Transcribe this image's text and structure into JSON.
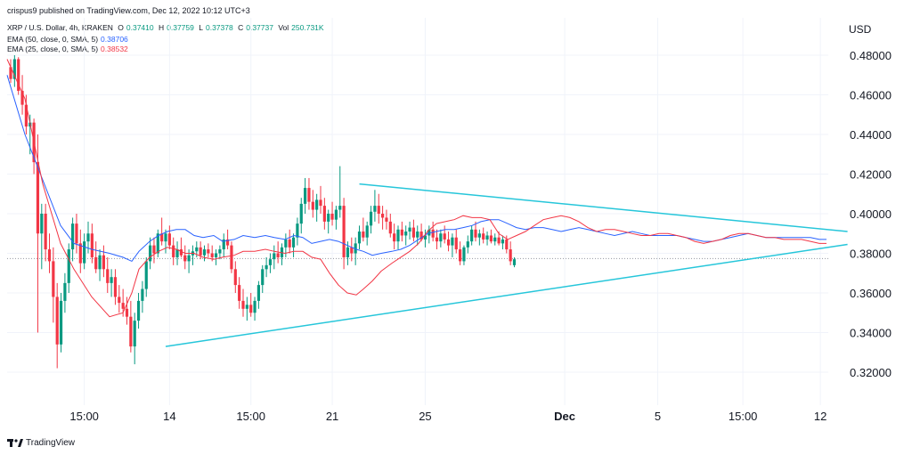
{
  "header": {
    "published": "crispus9 published on TradingView.com, Dec 12, 2022 10:12 UTC+3",
    "symbol": "XRP / U.S. Dollar, 4h, KRAKEN",
    "o_label": "O",
    "o": "0.37410",
    "h_label": "H",
    "h": "0.37759",
    "l_label": "L",
    "l": "0.37378",
    "c_label": "C",
    "c": "0.37737",
    "vol_label": "Vol",
    "vol": "250.731K",
    "ema50_label": "EMA (50, close, 0, SMA, 5)",
    "ema50_value": "0.38706",
    "ema25_label": "EMA (25, close, 0, SMA, 5)",
    "ema25_value": "0.38532"
  },
  "currency": "USD",
  "footer": {
    "brand": "TradingView"
  },
  "colors": {
    "up": "#089981",
    "down": "#f23645",
    "ema50": "#2962ff",
    "ema25": "#f23645",
    "trendline": "#26c6da",
    "text": "#131722"
  },
  "chart_data": {
    "type": "candlestick",
    "timeframe": "4h",
    "ylim": [
      0.305,
      0.495
    ],
    "y_ticks": [
      "0.48000",
      "0.46000",
      "0.44000",
      "0.42000",
      "0.40000",
      "0.38000",
      "0.36000",
      "0.34000",
      "0.32000"
    ],
    "x_ticks": [
      {
        "label": "15:00",
        "bar": 19
      },
      {
        "label": "14",
        "bar": 41
      },
      {
        "label": "15:00",
        "bar": 62
      },
      {
        "label": "21",
        "bar": 83
      },
      {
        "label": "25",
        "bar": 107
      },
      {
        "label": "Dec",
        "bar": 143,
        "bold": true
      },
      {
        "label": "5",
        "bar": 167
      },
      {
        "label": "15:00",
        "bar": 189
      },
      {
        "label": "12",
        "bar": 209
      }
    ],
    "last_price": 0.37737,
    "ohlc": [
      [
        0.474,
        0.478,
        0.466,
        0.468
      ],
      [
        0.468,
        0.48,
        0.464,
        0.478
      ],
      [
        0.478,
        0.479,
        0.46,
        0.462
      ],
      [
        0.462,
        0.47,
        0.45,
        0.455
      ],
      [
        0.455,
        0.46,
        0.44,
        0.444
      ],
      [
        0.444,
        0.45,
        0.43,
        0.446
      ],
      [
        0.446,
        0.448,
        0.42,
        0.426
      ],
      [
        0.426,
        0.44,
        0.34,
        0.39
      ],
      [
        0.39,
        0.405,
        0.372,
        0.4
      ],
      [
        0.4,
        0.405,
        0.376,
        0.382
      ],
      [
        0.382,
        0.39,
        0.37,
        0.376
      ],
      [
        0.376,
        0.383,
        0.345,
        0.358
      ],
      [
        0.358,
        0.365,
        0.322,
        0.334
      ],
      [
        0.334,
        0.36,
        0.33,
        0.356
      ],
      [
        0.356,
        0.37,
        0.35,
        0.365
      ],
      [
        0.365,
        0.385,
        0.36,
        0.382
      ],
      [
        0.382,
        0.398,
        0.376,
        0.395
      ],
      [
        0.395,
        0.4,
        0.38,
        0.385
      ],
      [
        0.385,
        0.392,
        0.37,
        0.375
      ],
      [
        0.375,
        0.39,
        0.372,
        0.386
      ],
      [
        0.386,
        0.396,
        0.38,
        0.39
      ],
      [
        0.39,
        0.395,
        0.375,
        0.378
      ],
      [
        0.378,
        0.386,
        0.37,
        0.372
      ],
      [
        0.372,
        0.382,
        0.366,
        0.379
      ],
      [
        0.379,
        0.384,
        0.368,
        0.372
      ],
      [
        0.372,
        0.378,
        0.36,
        0.365
      ],
      [
        0.365,
        0.372,
        0.358,
        0.368
      ],
      [
        0.368,
        0.372,
        0.354,
        0.358
      ],
      [
        0.358,
        0.364,
        0.35,
        0.355
      ],
      [
        0.355,
        0.362,
        0.348,
        0.352
      ],
      [
        0.352,
        0.358,
        0.344,
        0.348
      ],
      [
        0.348,
        0.356,
        0.33,
        0.333
      ],
      [
        0.333,
        0.35,
        0.324,
        0.346
      ],
      [
        0.346,
        0.36,
        0.342,
        0.356
      ],
      [
        0.356,
        0.366,
        0.35,
        0.362
      ],
      [
        0.362,
        0.378,
        0.358,
        0.376
      ],
      [
        0.376,
        0.388,
        0.372,
        0.384
      ],
      [
        0.384,
        0.388,
        0.375,
        0.38
      ],
      [
        0.38,
        0.392,
        0.378,
        0.39
      ],
      [
        0.39,
        0.398,
        0.384,
        0.386
      ],
      [
        0.386,
        0.392,
        0.38,
        0.39
      ],
      [
        0.39,
        0.394,
        0.382,
        0.384
      ],
      [
        0.384,
        0.388,
        0.374,
        0.378
      ],
      [
        0.378,
        0.386,
        0.374,
        0.382
      ],
      [
        0.382,
        0.388,
        0.378,
        0.379
      ],
      [
        0.379,
        0.384,
        0.372,
        0.376
      ],
      [
        0.376,
        0.382,
        0.37,
        0.379
      ],
      [
        0.379,
        0.384,
        0.374,
        0.381
      ],
      [
        0.381,
        0.386,
        0.378,
        0.383
      ],
      [
        0.383,
        0.386,
        0.377,
        0.379
      ],
      [
        0.379,
        0.384,
        0.376,
        0.382
      ],
      [
        0.382,
        0.385,
        0.378,
        0.38
      ],
      [
        0.38,
        0.384,
        0.376,
        0.378
      ],
      [
        0.378,
        0.382,
        0.374,
        0.38
      ],
      [
        0.38,
        0.384,
        0.377,
        0.382
      ],
      [
        0.382,
        0.39,
        0.378,
        0.387
      ],
      [
        0.387,
        0.392,
        0.382,
        0.384
      ],
      [
        0.384,
        0.386,
        0.37,
        0.372
      ],
      [
        0.372,
        0.376,
        0.36,
        0.364
      ],
      [
        0.364,
        0.368,
        0.352,
        0.356
      ],
      [
        0.356,
        0.362,
        0.348,
        0.352
      ],
      [
        0.352,
        0.358,
        0.346,
        0.354
      ],
      [
        0.354,
        0.36,
        0.348,
        0.35
      ],
      [
        0.35,
        0.358,
        0.346,
        0.356
      ],
      [
        0.356,
        0.366,
        0.352,
        0.364
      ],
      [
        0.364,
        0.374,
        0.36,
        0.372
      ],
      [
        0.372,
        0.378,
        0.368,
        0.374
      ],
      [
        0.374,
        0.38,
        0.37,
        0.377
      ],
      [
        0.377,
        0.384,
        0.372,
        0.38
      ],
      [
        0.38,
        0.386,
        0.375,
        0.378
      ],
      [
        0.378,
        0.385,
        0.374,
        0.383
      ],
      [
        0.383,
        0.39,
        0.378,
        0.387
      ],
      [
        0.387,
        0.392,
        0.38,
        0.383
      ],
      [
        0.383,
        0.39,
        0.378,
        0.388
      ],
      [
        0.388,
        0.398,
        0.384,
        0.395
      ],
      [
        0.395,
        0.408,
        0.39,
        0.405
      ],
      [
        0.405,
        0.418,
        0.4,
        0.413
      ],
      [
        0.413,
        0.418,
        0.402,
        0.406
      ],
      [
        0.406,
        0.412,
        0.398,
        0.402
      ],
      [
        0.402,
        0.41,
        0.396,
        0.407
      ],
      [
        0.407,
        0.414,
        0.4,
        0.404
      ],
      [
        0.404,
        0.408,
        0.392,
        0.396
      ],
      [
        0.396,
        0.402,
        0.39,
        0.4
      ],
      [
        0.4,
        0.406,
        0.394,
        0.397
      ],
      [
        0.397,
        0.404,
        0.392,
        0.402
      ],
      [
        0.402,
        0.424,
        0.398,
        0.404
      ],
      [
        0.404,
        0.408,
        0.372,
        0.378
      ],
      [
        0.378,
        0.386,
        0.374,
        0.383
      ],
      [
        0.383,
        0.388,
        0.376,
        0.38
      ],
      [
        0.38,
        0.388,
        0.374,
        0.385
      ],
      [
        0.385,
        0.394,
        0.382,
        0.391
      ],
      [
        0.391,
        0.398,
        0.386,
        0.388
      ],
      [
        0.388,
        0.396,
        0.384,
        0.394
      ],
      [
        0.394,
        0.404,
        0.39,
        0.401
      ],
      [
        0.401,
        0.412,
        0.396,
        0.404
      ],
      [
        0.404,
        0.41,
        0.395,
        0.4
      ],
      [
        0.4,
        0.404,
        0.392,
        0.398
      ],
      [
        0.398,
        0.402,
        0.392,
        0.396
      ],
      [
        0.396,
        0.4,
        0.388,
        0.39
      ],
      [
        0.39,
        0.395,
        0.382,
        0.386
      ],
      [
        0.386,
        0.394,
        0.382,
        0.392
      ],
      [
        0.392,
        0.396,
        0.386,
        0.389
      ],
      [
        0.389,
        0.394,
        0.384,
        0.391
      ],
      [
        0.391,
        0.396,
        0.387,
        0.393
      ],
      [
        0.393,
        0.397,
        0.386,
        0.388
      ],
      [
        0.388,
        0.394,
        0.384,
        0.391
      ],
      [
        0.391,
        0.395,
        0.386,
        0.387
      ],
      [
        0.387,
        0.392,
        0.383,
        0.389
      ],
      [
        0.389,
        0.394,
        0.385,
        0.392
      ],
      [
        0.392,
        0.396,
        0.386,
        0.388
      ],
      [
        0.388,
        0.392,
        0.382,
        0.386
      ],
      [
        0.386,
        0.392,
        0.383,
        0.39
      ],
      [
        0.39,
        0.394,
        0.385,
        0.387
      ],
      [
        0.387,
        0.391,
        0.381,
        0.384
      ],
      [
        0.384,
        0.39,
        0.378,
        0.388
      ],
      [
        0.388,
        0.392,
        0.38,
        0.382
      ],
      [
        0.382,
        0.386,
        0.374,
        0.376
      ],
      [
        0.376,
        0.384,
        0.374,
        0.383
      ],
      [
        0.383,
        0.389,
        0.38,
        0.386
      ],
      [
        0.386,
        0.394,
        0.384,
        0.392
      ],
      [
        0.392,
        0.396,
        0.386,
        0.388
      ],
      [
        0.388,
        0.392,
        0.384,
        0.39
      ],
      [
        0.39,
        0.393,
        0.385,
        0.387
      ],
      [
        0.387,
        0.391,
        0.384,
        0.389
      ],
      [
        0.389,
        0.392,
        0.385,
        0.386
      ],
      [
        0.386,
        0.39,
        0.384,
        0.388
      ],
      [
        0.388,
        0.391,
        0.384,
        0.385
      ],
      [
        0.385,
        0.389,
        0.382,
        0.387
      ],
      [
        0.387,
        0.389,
        0.38,
        0.382
      ],
      [
        0.382,
        0.386,
        0.374,
        0.376
      ],
      [
        0.374,
        0.378,
        0.373,
        0.377
      ]
    ],
    "ema50": [
      [
        0,
        0.47
      ],
      [
        20,
        0.44
      ],
      [
        40,
        0.417
      ],
      [
        60,
        0.394
      ],
      [
        75,
        0.385
      ],
      [
        95,
        0.382
      ],
      [
        115,
        0.38
      ],
      [
        130,
        0.378
      ],
      [
        140,
        0.376
      ],
      [
        148,
        0.381
      ],
      [
        160,
        0.386
      ],
      [
        170,
        0.389
      ],
      [
        180,
        0.391
      ],
      [
        190,
        0.392
      ],
      [
        200,
        0.392
      ],
      [
        210,
        0.389
      ],
      [
        220,
        0.388
      ],
      [
        232,
        0.389
      ],
      [
        242,
        0.386
      ],
      [
        255,
        0.387
      ],
      [
        265,
        0.389
      ],
      [
        278,
        0.388
      ],
      [
        290,
        0.389
      ],
      [
        300,
        0.388
      ],
      [
        312,
        0.387
      ],
      [
        322,
        0.389
      ],
      [
        332,
        0.388
      ],
      [
        342,
        0.385
      ],
      [
        352,
        0.386
      ],
      [
        362,
        0.387
      ],
      [
        372,
        0.386
      ],
      [
        382,
        0.384
      ],
      [
        392,
        0.382
      ],
      [
        400,
        0.381
      ],
      [
        410,
        0.379
      ],
      [
        420,
        0.38
      ],
      [
        432,
        0.381
      ],
      [
        442,
        0.382
      ],
      [
        452,
        0.384
      ],
      [
        462,
        0.387
      ],
      [
        472,
        0.39
      ],
      [
        482,
        0.391
      ],
      [
        492,
        0.392
      ],
      [
        502,
        0.392
      ],
      [
        512,
        0.393
      ],
      [
        522,
        0.394
      ],
      [
        532,
        0.396
      ],
      [
        542,
        0.397
      ],
      [
        552,
        0.397
      ],
      [
        562,
        0.395
      ],
      [
        572,
        0.393
      ],
      [
        582,
        0.392
      ],
      [
        592,
        0.393
      ],
      [
        602,
        0.393
      ],
      [
        612,
        0.392
      ],
      [
        622,
        0.391
      ],
      [
        632,
        0.392
      ],
      [
        642,
        0.393
      ],
      [
        652,
        0.392
      ],
      [
        662,
        0.391
      ],
      [
        672,
        0.39
      ],
      [
        682,
        0.389
      ],
      [
        692,
        0.39
      ],
      [
        702,
        0.391
      ],
      [
        712,
        0.39
      ],
      [
        722,
        0.389
      ],
      [
        732,
        0.389
      ],
      [
        742,
        0.389
      ],
      [
        752,
        0.389
      ],
      [
        762,
        0.388
      ],
      [
        772,
        0.387
      ],
      [
        782,
        0.386
      ],
      [
        792,
        0.386
      ],
      [
        802,
        0.387
      ],
      [
        812,
        0.388
      ],
      [
        822,
        0.389
      ],
      [
        832,
        0.39
      ],
      [
        842,
        0.389
      ],
      [
        852,
        0.388
      ],
      [
        862,
        0.388
      ],
      [
        872,
        0.388
      ],
      [
        882,
        0.388
      ],
      [
        892,
        0.388
      ],
      [
        902,
        0.388
      ],
      [
        912,
        0.387
      ],
      [
        920,
        0.387
      ]
    ],
    "ema25": [
      [
        0,
        0.478
      ],
      [
        20,
        0.458
      ],
      [
        40,
        0.415
      ],
      [
        60,
        0.385
      ],
      [
        75,
        0.372
      ],
      [
        95,
        0.358
      ],
      [
        115,
        0.348
      ],
      [
        130,
        0.35
      ],
      [
        140,
        0.36
      ],
      [
        148,
        0.372
      ],
      [
        160,
        0.378
      ],
      [
        170,
        0.381
      ],
      [
        180,
        0.383
      ],
      [
        190,
        0.382
      ],
      [
        200,
        0.38
      ],
      [
        210,
        0.38
      ],
      [
        220,
        0.378
      ],
      [
        232,
        0.377
      ],
      [
        242,
        0.378
      ],
      [
        255,
        0.379
      ],
      [
        265,
        0.381
      ],
      [
        278,
        0.381
      ],
      [
        290,
        0.382
      ],
      [
        300,
        0.381
      ],
      [
        312,
        0.38
      ],
      [
        322,
        0.381
      ],
      [
        332,
        0.381
      ],
      [
        342,
        0.378
      ],
      [
        352,
        0.377
      ],
      [
        362,
        0.37
      ],
      [
        372,
        0.364
      ],
      [
        382,
        0.36
      ],
      [
        392,
        0.359
      ],
      [
        400,
        0.362
      ],
      [
        410,
        0.366
      ],
      [
        420,
        0.371
      ],
      [
        432,
        0.375
      ],
      [
        442,
        0.378
      ],
      [
        452,
        0.381
      ],
      [
        462,
        0.385
      ],
      [
        472,
        0.391
      ],
      [
        482,
        0.395
      ],
      [
        492,
        0.396
      ],
      [
        502,
        0.397
      ],
      [
        512,
        0.399
      ],
      [
        522,
        0.398
      ],
      [
        532,
        0.398
      ],
      [
        542,
        0.397
      ],
      [
        552,
        0.39
      ],
      [
        562,
        0.387
      ],
      [
        572,
        0.389
      ],
      [
        582,
        0.391
      ],
      [
        592,
        0.394
      ],
      [
        602,
        0.397
      ],
      [
        612,
        0.398
      ],
      [
        622,
        0.399
      ],
      [
        632,
        0.398
      ],
      [
        642,
        0.396
      ],
      [
        652,
        0.393
      ],
      [
        662,
        0.391
      ],
      [
        672,
        0.392
      ],
      [
        682,
        0.392
      ],
      [
        692,
        0.391
      ],
      [
        702,
        0.39
      ],
      [
        712,
        0.389
      ],
      [
        722,
        0.389
      ],
      [
        732,
        0.39
      ],
      [
        742,
        0.39
      ],
      [
        752,
        0.389
      ],
      [
        762,
        0.388
      ],
      [
        772,
        0.386
      ],
      [
        782,
        0.385
      ],
      [
        792,
        0.386
      ],
      [
        802,
        0.387
      ],
      [
        812,
        0.389
      ],
      [
        822,
        0.39
      ],
      [
        832,
        0.39
      ],
      [
        842,
        0.389
      ],
      [
        852,
        0.388
      ],
      [
        862,
        0.388
      ],
      [
        872,
        0.387
      ],
      [
        882,
        0.387
      ],
      [
        892,
        0.387
      ],
      [
        902,
        0.386
      ],
      [
        912,
        0.385
      ],
      [
        920,
        0.385
      ]
    ],
    "trendlines": [
      {
        "name": "lower",
        "points": [
          [
            40,
            0.333
          ],
          [
            216,
            0.3845
          ]
        ]
      },
      {
        "name": "upper",
        "points": [
          [
            90,
            0.415
          ],
          [
            216,
            0.391
          ]
        ]
      }
    ]
  }
}
